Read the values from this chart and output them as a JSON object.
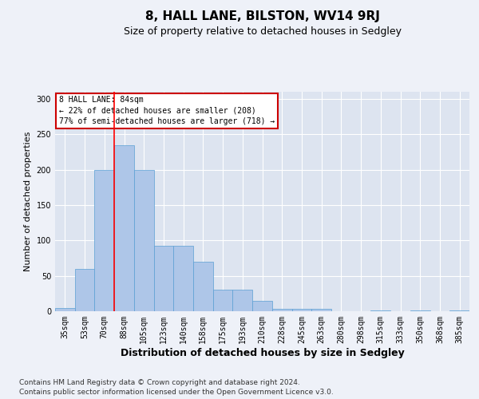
{
  "title1": "8, HALL LANE, BILSTON, WV14 9RJ",
  "title2": "Size of property relative to detached houses in Sedgley",
  "xlabel": "Distribution of detached houses by size in Sedgley",
  "ylabel": "Number of detached properties",
  "footer1": "Contains HM Land Registry data © Crown copyright and database right 2024.",
  "footer2": "Contains public sector information licensed under the Open Government Licence v3.0.",
  "annotation_line1": "8 HALL LANE: 84sqm",
  "annotation_line2": "← 22% of detached houses are smaller (208)",
  "annotation_line3": "77% of semi-detached houses are larger (718) →",
  "categories": [
    "35sqm",
    "53sqm",
    "70sqm",
    "88sqm",
    "105sqm",
    "123sqm",
    "140sqm",
    "158sqm",
    "175sqm",
    "193sqm",
    "210sqm",
    "228sqm",
    "245sqm",
    "263sqm",
    "280sqm",
    "298sqm",
    "315sqm",
    "333sqm",
    "350sqm",
    "368sqm",
    "385sqm"
  ],
  "values": [
    5,
    60,
    200,
    235,
    200,
    93,
    93,
    70,
    30,
    30,
    15,
    3,
    3,
    3,
    0,
    0,
    1,
    0,
    1,
    0,
    1
  ],
  "bar_color": "#aec6e8",
  "bar_edge_color": "#5a9fd4",
  "red_line_x": 2.5,
  "ylim": [
    0,
    310
  ],
  "yticks": [
    0,
    50,
    100,
    150,
    200,
    250,
    300
  ],
  "bg_color": "#eef1f8",
  "plot_bg_color": "#dde4f0",
  "grid_color": "#ffffff",
  "annotation_box_color": "#ffffff",
  "annotation_box_edge": "#cc0000",
  "title1_fontsize": 11,
  "title2_fontsize": 9,
  "xlabel_fontsize": 9,
  "ylabel_fontsize": 8,
  "tick_fontsize": 7,
  "footer_fontsize": 6.5
}
